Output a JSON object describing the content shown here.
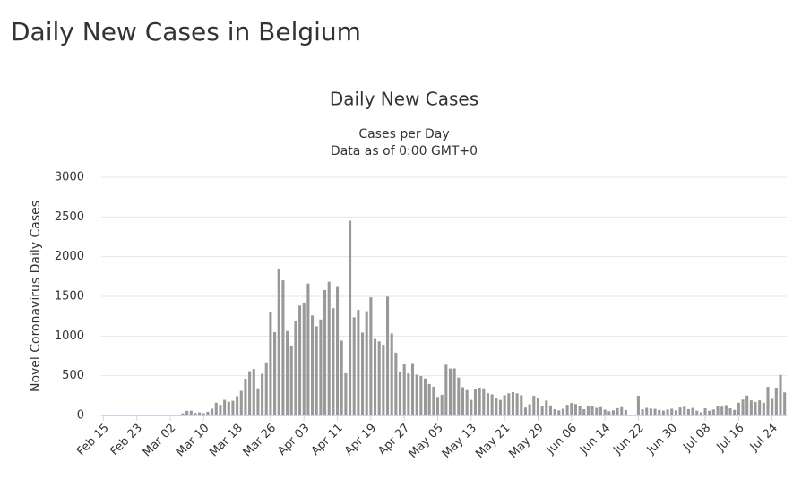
{
  "page_title": "Daily New Cases in Belgium",
  "chart_data": {
    "type": "bar",
    "title": "Daily New Cases",
    "subtitle": [
      "Cases per Day",
      "Data as of 0:00 GMT+0"
    ],
    "y_label": "Novel Coronavirus Daily Cases",
    "color": "#999999",
    "grid": true,
    "ylim": [
      0,
      3000
    ],
    "yticks": [
      0,
      500,
      1000,
      1500,
      2000,
      2500,
      3000
    ],
    "categories": [
      "Feb 15",
      null,
      null,
      null,
      null,
      null,
      null,
      null,
      "Feb 23",
      null,
      null,
      null,
      null,
      null,
      null,
      null,
      "Mar 02",
      null,
      null,
      null,
      null,
      null,
      null,
      null,
      "Mar 10",
      null,
      null,
      null,
      null,
      null,
      null,
      null,
      "Mar 18",
      null,
      null,
      null,
      null,
      null,
      null,
      null,
      "Mar 26",
      null,
      null,
      null,
      null,
      null,
      null,
      null,
      "Apr 03",
      null,
      null,
      null,
      null,
      null,
      null,
      null,
      "Apr 11",
      null,
      null,
      null,
      null,
      null,
      null,
      null,
      "Apr 19",
      null,
      null,
      null,
      null,
      null,
      null,
      null,
      "Apr 27",
      null,
      null,
      null,
      null,
      null,
      null,
      null,
      "May 05",
      null,
      null,
      null,
      null,
      null,
      null,
      null,
      "May 13",
      null,
      null,
      null,
      null,
      null,
      null,
      null,
      "May 21",
      null,
      null,
      null,
      null,
      null,
      null,
      null,
      "May 29",
      null,
      null,
      null,
      null,
      null,
      null,
      null,
      "Jun 06",
      null,
      null,
      null,
      null,
      null,
      null,
      null,
      "Jun 14",
      null,
      null,
      null,
      null,
      null,
      null,
      null,
      "Jun 22",
      null,
      null,
      null,
      null,
      null,
      null,
      null,
      "Jun 30",
      null,
      null,
      null,
      null,
      null,
      null,
      null,
      "Jul 08",
      null,
      null,
      null,
      null,
      null,
      null,
      null,
      "Jul 16",
      null,
      null,
      null,
      null,
      null,
      null,
      null,
      "Jul 24",
      null,
      null,
      null
    ],
    "values": [
      0,
      0,
      0,
      0,
      0,
      0,
      0,
      0,
      0,
      0,
      0,
      0,
      0,
      0,
      0,
      1,
      6,
      5,
      10,
      27,
      59,
      60,
      31,
      39,
      28,
      47,
      85,
      160,
      133,
      197,
      172,
      185,
      243,
      309,
      462,
      558,
      586,
      342,
      526,
      668,
      1298,
      1049,
      1850,
      1702,
      1063,
      876,
      1189,
      1384,
      1422,
      1661,
      1260,
      1123,
      1209,
      1580,
      1684,
      1351,
      1629,
      942,
      530,
      2454,
      1236,
      1329,
      1045,
      1313,
      1487,
      963,
      933,
      890,
      1496,
      1032,
      791,
      553,
      647,
      528,
      660,
      514,
      496,
      465,
      395,
      361,
      234,
      260,
      639,
      591,
      592,
      477,
      356,
      319,
      197,
      328,
      350,
      341,
      280,
      265,
      220,
      196,
      256,
      279,
      293,
      278,
      254,
      99,
      141,
      247,
      221,
      117,
      187,
      126,
      79,
      64,
      84,
      134,
      157,
      144,
      124,
      79,
      118,
      122,
      96,
      105,
      74,
      53,
      64,
      92,
      104,
      68,
      0,
      0,
      249,
      77,
      96,
      87,
      84,
      70,
      60,
      75,
      85,
      65,
      100,
      110,
      80,
      95,
      60,
      40,
      90,
      60,
      75,
      120,
      110,
      130,
      90,
      70,
      160,
      200,
      250,
      190,
      170,
      190,
      160,
      360,
      210,
      350,
      510,
      290
    ]
  }
}
